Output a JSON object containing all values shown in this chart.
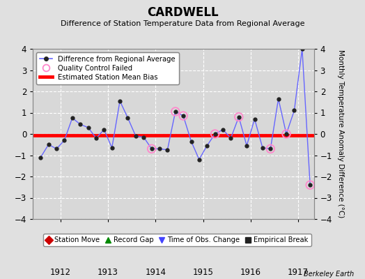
{
  "title": "CARDWELL",
  "subtitle": "Difference of Station Temperature Data from Regional Average",
  "ylabel_right": "Monthly Temperature Anomaly Difference (°C)",
  "credit": "Berkeley Earth",
  "xlim": [
    1911.42,
    1917.33
  ],
  "ylim": [
    -4,
    4
  ],
  "yticks": [
    -4,
    -3,
    -2,
    -1,
    0,
    1,
    2,
    3,
    4
  ],
  "xticks": [
    1912,
    1913,
    1914,
    1915,
    1916,
    1917
  ],
  "bias_line_y": -0.08,
  "background_color": "#e0e0e0",
  "plot_bg_color": "#d8d8d8",
  "grid_color": "#ffffff",
  "line_color": "#6666ff",
  "bias_color": "#ff0000",
  "qc_color": "#ff88cc",
  "times": [
    1911.583,
    1911.75,
    1911.917,
    1912.083,
    1912.25,
    1912.417,
    1912.583,
    1912.75,
    1912.917,
    1913.083,
    1913.25,
    1913.417,
    1913.583,
    1913.75,
    1913.917,
    1914.083,
    1914.25,
    1914.417,
    1914.583,
    1914.75,
    1914.917,
    1915.083,
    1915.25,
    1915.417,
    1915.583,
    1915.75,
    1915.917,
    1916.083,
    1916.25,
    1916.417,
    1916.583,
    1916.75,
    1916.917,
    1917.083,
    1917.25
  ],
  "values": [
    -1.1,
    -0.5,
    -0.7,
    -0.3,
    0.75,
    0.45,
    0.3,
    -0.2,
    0.2,
    -0.65,
    1.55,
    0.75,
    -0.1,
    -0.15,
    -0.7,
    -0.7,
    -0.75,
    1.05,
    0.85,
    -0.35,
    -1.2,
    -0.55,
    0.0,
    0.2,
    -0.2,
    0.8,
    -0.55,
    0.7,
    -0.65,
    -0.7,
    1.65,
    0.0,
    1.1,
    4.0,
    -2.4
  ],
  "qc_indices": [
    14,
    17,
    18,
    22,
    25,
    29,
    31,
    34
  ],
  "legend1_label0": "Difference from Regional Average",
  "legend1_label1": "Quality Control Failed",
  "legend1_label2": "Estimated Station Mean Bias",
  "legend2_labels": [
    "Station Move",
    "Record Gap",
    "Time of Obs. Change",
    "Empirical Break"
  ],
  "legend2_colors": [
    "#cc0000",
    "#008800",
    "#4444ff",
    "#222222"
  ],
  "legend2_markers": [
    "D",
    "^",
    "v",
    "s"
  ]
}
